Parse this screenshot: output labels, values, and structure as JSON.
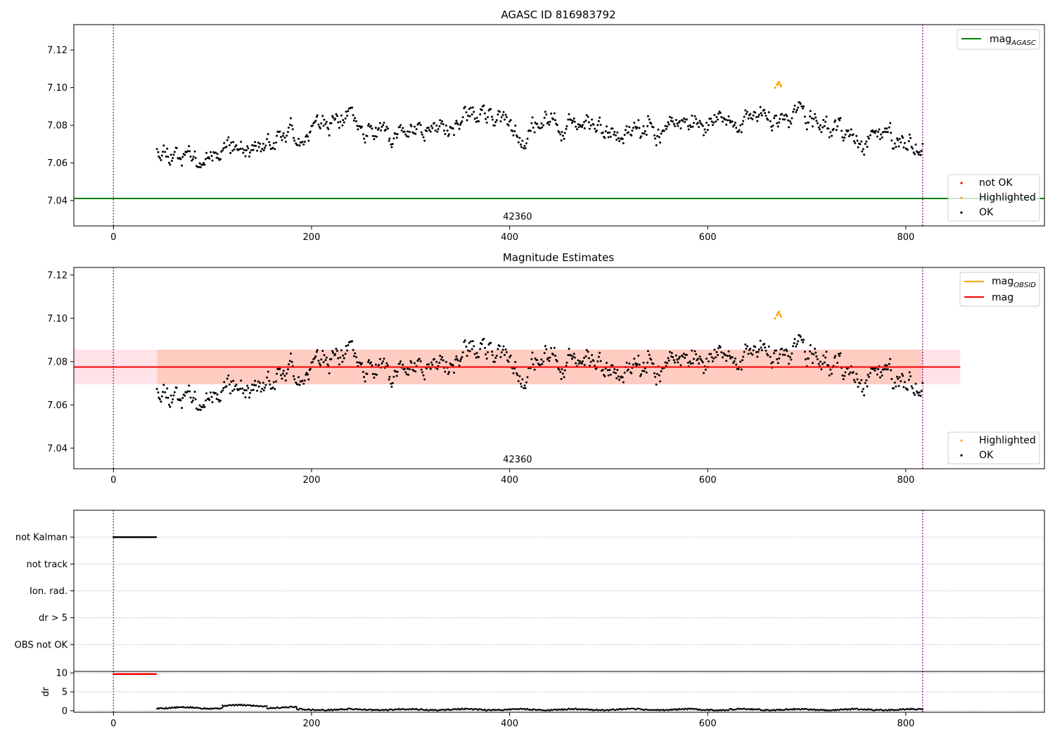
{
  "colors": {
    "ok": "#000000",
    "not_ok": "#ff0000",
    "highlighted": "#ffa500",
    "agasc_line": "#008000",
    "mag_line": "#ff0000",
    "obsid_line": "#ffa500",
    "band_outer": "#ffc0cb",
    "band_inner": "#ffa07a",
    "obs_boundary": "#800080",
    "grid": "#b0b0b0"
  },
  "chart_data": [
    {
      "type": "scatter",
      "title": "AGASC ID 816983792",
      "xlim": [
        -40,
        940
      ],
      "ylim": [
        7.0265,
        7.1335
      ],
      "xticks": [
        0,
        200,
        400,
        600,
        800
      ],
      "yticks": [
        7.04,
        7.06,
        7.08,
        7.1,
        7.12
      ],
      "ytick_labels": [
        "7.04",
        "7.06",
        "7.08",
        "7.10",
        "7.12"
      ],
      "obsid_label": "42360",
      "obsid_label_x": 408,
      "obs_boundaries": [
        0,
        817
      ],
      "agasc_mag": 7.0411,
      "agasc_legend": {
        "label_main": "mag",
        "label_sub": "AGASC"
      },
      "legend": [
        {
          "label": "not OK",
          "color_key": "not_ok"
        },
        {
          "label": "Highlighted",
          "color_key": "highlighted"
        },
        {
          "label": "OK",
          "color_key": "ok"
        }
      ],
      "series": [
        {
          "name": "OK",
          "x_start": 44,
          "x_end": 817,
          "seed": 11
        },
        {
          "name": "Highlighted",
          "x": [
            668,
            670,
            671,
            672,
            673,
            674
          ],
          "y": [
            7.1,
            7.1015,
            7.1025,
            7.103,
            7.1018,
            7.1008
          ]
        }
      ]
    },
    {
      "type": "scatter",
      "title": "Magnitude Estimates",
      "xlim": [
        -40,
        940
      ],
      "ylim": [
        7.0305,
        7.1235
      ],
      "xticks": [
        0,
        200,
        400,
        600,
        800
      ],
      "yticks": [
        7.04,
        7.06,
        7.08,
        7.1,
        7.12
      ],
      "ytick_labels": [
        "7.04",
        "7.06",
        "7.08",
        "7.10",
        "7.12"
      ],
      "obsid_label": "42360",
      "obsid_label_x": 408,
      "obs_boundaries": [
        0,
        817
      ],
      "mag": 7.0775,
      "mag_obsid": 7.0775,
      "band_outer": [
        7.0695,
        7.0855
      ],
      "band_inner": [
        7.0695,
        7.0855
      ],
      "band_x_end": 855,
      "obsid_band_x_range": [
        44,
        817
      ],
      "mag_line_x_end": 855,
      "mag_legend": [
        {
          "label_main": "mag",
          "label_sub": "OBSID",
          "color_key": "obsid_line"
        },
        {
          "label_main": "mag",
          "label_sub": "",
          "color_key": "mag_line"
        }
      ],
      "legend": [
        {
          "label": "Highlighted",
          "color_key": "highlighted"
        },
        {
          "label": "OK",
          "color_key": "ok"
        }
      ],
      "series": [
        {
          "name": "OK",
          "x_start": 44,
          "x_end": 817,
          "seed": 11
        },
        {
          "name": "Highlighted",
          "x": [
            668,
            670,
            671,
            672,
            673,
            674
          ],
          "y": [
            7.1,
            7.1015,
            7.1025,
            7.103,
            7.1018,
            7.1008
          ]
        }
      ]
    },
    {
      "type": "scatter",
      "title": "",
      "xlim": [
        -40,
        940
      ],
      "categories": [
        "not Kalman",
        "not track",
        "Ion. rad.",
        "dr > 5",
        "OBS not OK"
      ],
      "obs_boundaries": [
        0,
        817
      ],
      "series": [
        {
          "name": "not Kalman",
          "x_start": 0,
          "x_end": 43
        }
      ]
    },
    {
      "type": "scatter",
      "title": "",
      "xlim": [
        -40,
        940
      ],
      "ylim": [
        -0.4,
        10.4
      ],
      "ylabel": "dr",
      "xticks": [
        0,
        200,
        400,
        600,
        800
      ],
      "yticks": [
        0,
        5,
        10
      ],
      "ytick_labels": [
        "0",
        "5",
        "10"
      ],
      "obs_boundaries": [
        0,
        817
      ],
      "series": [
        {
          "name": "not OK (clipped)",
          "x_start": 0,
          "x_end": 43,
          "y": 9.7
        },
        {
          "name": "OK",
          "segments": [
            {
              "x": [
                44,
                110
              ],
              "level": 0.75
            },
            {
              "x": [
                110,
                155
              ],
              "level": 1.35
            },
            {
              "x": [
                155,
                185
              ],
              "level": 0.85
            },
            {
              "x": [
                185,
                817
              ],
              "level": 0.3
            }
          ]
        }
      ]
    }
  ]
}
